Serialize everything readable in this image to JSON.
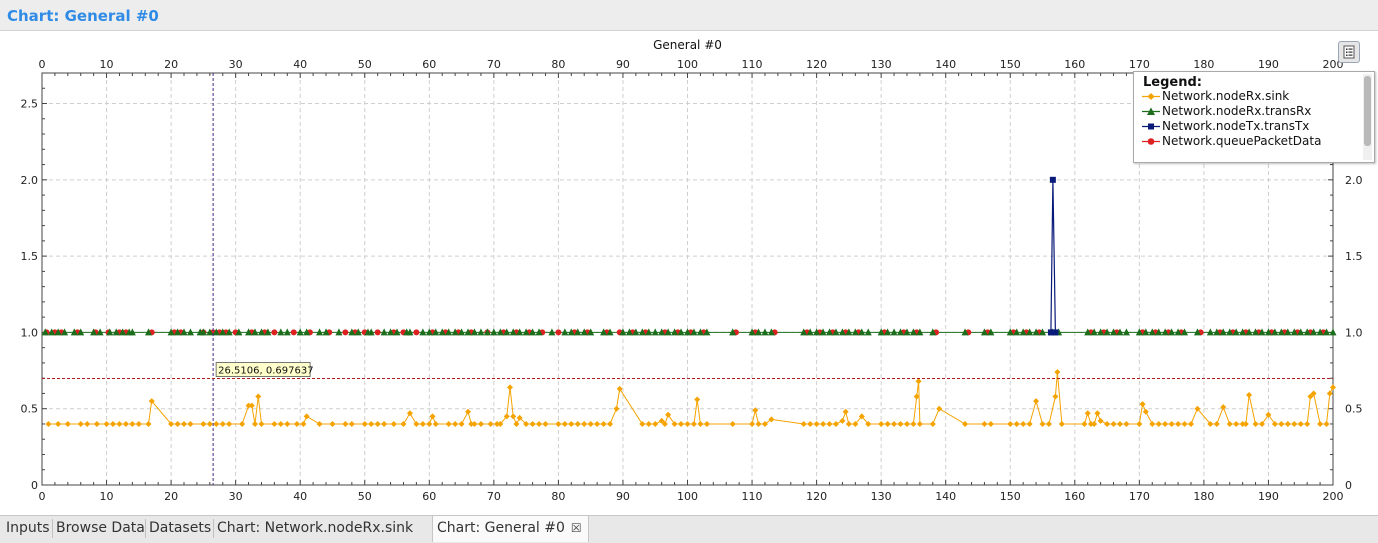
{
  "header": {
    "title": "Chart: General  #0"
  },
  "chart_data": {
    "type": "line",
    "title": "General  #0",
    "xlim": [
      0,
      200
    ],
    "ylim": [
      0,
      2.7
    ],
    "x_ticks": [
      0,
      10,
      20,
      30,
      40,
      50,
      60,
      70,
      80,
      90,
      100,
      110,
      120,
      130,
      140,
      150,
      160,
      170,
      180,
      190,
      200
    ],
    "x_tick_labels": [
      "0",
      "10",
      "20",
      "30",
      "40",
      "50",
      "60",
      "70",
      "80",
      "90",
      "100",
      "110",
      "120",
      "130",
      "140",
      "150",
      "160",
      "170",
      "180",
      "190",
      "200"
    ],
    "y_ticks": [
      0,
      0.5,
      1.0,
      1.5,
      2.0,
      2.5
    ],
    "y_tick_labels": [
      "0",
      "0.5",
      "1.0",
      "1.5",
      "2.0",
      "2.5"
    ],
    "y_ticks_right": [
      0,
      0.5,
      1.0,
      1.5,
      2.0
    ],
    "y_tick_labels_right": [
      "0",
      "0.5",
      "1.0",
      "1.5",
      "2.0"
    ],
    "grid": true,
    "legend_position": "top-right",
    "crosshair": {
      "x": 26.5106,
      "y": 0.697637,
      "label": "26.5106, 0.697637"
    },
    "series": [
      {
        "name": "Network.nodeRx.sink",
        "color": "#f5a300",
        "marker": "diamond",
        "points": [
          [
            1,
            0.4
          ],
          [
            2.5,
            0.4
          ],
          [
            4,
            0.4
          ],
          [
            6,
            0.4
          ],
          [
            7,
            0.4
          ],
          [
            8.5,
            0.4
          ],
          [
            10,
            0.4
          ],
          [
            11,
            0.4
          ],
          [
            12,
            0.4
          ],
          [
            13,
            0.4
          ],
          [
            14,
            0.4
          ],
          [
            15,
            0.4
          ],
          [
            16.5,
            0.4
          ],
          [
            17,
            0.55
          ],
          [
            20,
            0.4
          ],
          [
            21,
            0.4
          ],
          [
            22,
            0.4
          ],
          [
            23,
            0.4
          ],
          [
            25,
            0.4
          ],
          [
            26,
            0.4
          ],
          [
            27,
            0.4
          ],
          [
            28,
            0.4
          ],
          [
            29,
            0.4
          ],
          [
            31,
            0.4
          ],
          [
            32,
            0.52
          ],
          [
            32.5,
            0.52
          ],
          [
            33,
            0.4
          ],
          [
            33.5,
            0.58
          ],
          [
            34,
            0.4
          ],
          [
            36,
            0.4
          ],
          [
            37,
            0.4
          ],
          [
            38,
            0.4
          ],
          [
            39.5,
            0.4
          ],
          [
            40.5,
            0.4
          ],
          [
            41,
            0.45
          ],
          [
            43,
            0.4
          ],
          [
            45,
            0.4
          ],
          [
            47,
            0.4
          ],
          [
            48,
            0.4
          ],
          [
            50,
            0.4
          ],
          [
            51,
            0.4
          ],
          [
            52,
            0.4
          ],
          [
            53,
            0.4
          ],
          [
            54.5,
            0.4
          ],
          [
            56,
            0.4
          ],
          [
            57,
            0.47
          ],
          [
            58,
            0.4
          ],
          [
            59,
            0.4
          ],
          [
            60,
            0.4
          ],
          [
            60.5,
            0.45
          ],
          [
            61,
            0.4
          ],
          [
            63,
            0.4
          ],
          [
            64,
            0.4
          ],
          [
            65,
            0.4
          ],
          [
            66,
            0.48
          ],
          [
            66.5,
            0.4
          ],
          [
            67,
            0.4
          ],
          [
            68,
            0.4
          ],
          [
            69.5,
            0.4
          ],
          [
            70.5,
            0.4
          ],
          [
            71,
            0.4
          ],
          [
            72,
            0.45
          ],
          [
            72.5,
            0.64
          ],
          [
            73,
            0.45
          ],
          [
            73.5,
            0.4
          ],
          [
            74,
            0.44
          ],
          [
            75,
            0.4
          ],
          [
            76,
            0.4
          ],
          [
            77,
            0.4
          ],
          [
            78,
            0.4
          ],
          [
            80,
            0.4
          ],
          [
            81,
            0.4
          ],
          [
            82,
            0.4
          ],
          [
            83,
            0.4
          ],
          [
            84,
            0.4
          ],
          [
            85,
            0.4
          ],
          [
            86,
            0.4
          ],
          [
            87,
            0.4
          ],
          [
            88,
            0.4
          ],
          [
            89,
            0.5
          ],
          [
            89.5,
            0.63
          ],
          [
            93,
            0.4
          ],
          [
            94,
            0.4
          ],
          [
            95,
            0.4
          ],
          [
            96,
            0.42
          ],
          [
            96.5,
            0.4
          ],
          [
            97,
            0.46
          ],
          [
            98,
            0.4
          ],
          [
            99,
            0.4
          ],
          [
            100,
            0.4
          ],
          [
            101,
            0.4
          ],
          [
            101.5,
            0.56
          ],
          [
            102,
            0.4
          ],
          [
            103,
            0.4
          ],
          [
            107,
            0.4
          ],
          [
            110,
            0.4
          ],
          [
            110.5,
            0.49
          ],
          [
            111,
            0.4
          ],
          [
            112,
            0.4
          ],
          [
            113,
            0.43
          ],
          [
            118,
            0.4
          ],
          [
            119,
            0.4
          ],
          [
            120,
            0.4
          ],
          [
            121,
            0.4
          ],
          [
            122,
            0.4
          ],
          [
            123,
            0.4
          ],
          [
            124,
            0.42
          ],
          [
            124.5,
            0.48
          ],
          [
            125,
            0.4
          ],
          [
            126,
            0.4
          ],
          [
            127,
            0.45
          ],
          [
            128,
            0.4
          ],
          [
            130,
            0.4
          ],
          [
            131,
            0.4
          ],
          [
            132,
            0.4
          ],
          [
            133,
            0.4
          ],
          [
            134,
            0.4
          ],
          [
            135,
            0.4
          ],
          [
            135.5,
            0.58
          ],
          [
            135.8,
            0.68
          ],
          [
            136,
            0.4
          ],
          [
            138,
            0.4
          ],
          [
            139,
            0.5
          ],
          [
            143,
            0.4
          ],
          [
            146,
            0.4
          ],
          [
            147,
            0.4
          ],
          [
            150,
            0.4
          ],
          [
            151,
            0.4
          ],
          [
            152,
            0.4
          ],
          [
            153,
            0.4
          ],
          [
            154,
            0.55
          ],
          [
            155,
            0.4
          ],
          [
            156,
            0.4
          ],
          [
            157,
            0.58
          ],
          [
            157.3,
            0.74
          ],
          [
            158,
            0.4
          ],
          [
            161.5,
            0.4
          ],
          [
            162,
            0.47
          ],
          [
            162.5,
            0.4
          ],
          [
            163,
            0.4
          ],
          [
            163.5,
            0.47
          ],
          [
            164,
            0.42
          ],
          [
            165,
            0.4
          ],
          [
            166,
            0.4
          ],
          [
            167,
            0.4
          ],
          [
            168,
            0.4
          ],
          [
            170,
            0.4
          ],
          [
            170.5,
            0.53
          ],
          [
            171,
            0.48
          ],
          [
            172,
            0.4
          ],
          [
            173,
            0.4
          ],
          [
            174,
            0.4
          ],
          [
            175,
            0.4
          ],
          [
            176,
            0.4
          ],
          [
            177,
            0.4
          ],
          [
            178,
            0.4
          ],
          [
            179,
            0.5
          ],
          [
            181,
            0.4
          ],
          [
            182,
            0.4
          ],
          [
            183,
            0.51
          ],
          [
            184,
            0.4
          ],
          [
            185,
            0.4
          ],
          [
            186,
            0.4
          ],
          [
            186.5,
            0.4
          ],
          [
            187,
            0.59
          ],
          [
            188,
            0.4
          ],
          [
            189,
            0.4
          ],
          [
            190,
            0.46
          ],
          [
            191,
            0.4
          ],
          [
            192,
            0.4
          ],
          [
            193,
            0.4
          ],
          [
            194,
            0.4
          ],
          [
            195,
            0.4
          ],
          [
            196,
            0.4
          ],
          [
            196.5,
            0.58
          ],
          [
            197,
            0.6
          ],
          [
            198,
            0.4
          ],
          [
            199,
            0.4
          ],
          [
            199.5,
            0.6
          ],
          [
            200,
            0.64
          ]
        ]
      },
      {
        "name": "Network.nodeRx.transRx",
        "color": "#1c6e1c",
        "marker": "triangle",
        "y": 1.0,
        "x": [
          0.5,
          1.5,
          2.5,
          3.5,
          5,
          6,
          8,
          9,
          10.5,
          11.5,
          12.5,
          13.5,
          14,
          16.5,
          20,
          21,
          22,
          23,
          24.5,
          25,
          26,
          27,
          28,
          29,
          30.5,
          32,
          33,
          34,
          35,
          37,
          38,
          40,
          41,
          43,
          44,
          46,
          48,
          49,
          50.5,
          51,
          53,
          54,
          55,
          56.5,
          57,
          59,
          60,
          61,
          62,
          63,
          64,
          65,
          66,
          67,
          68,
          69,
          70,
          71,
          72,
          73,
          74,
          75,
          76,
          77,
          79,
          81,
          82,
          83,
          84,
          85,
          87,
          88,
          90,
          91,
          92,
          93,
          94,
          95,
          96,
          97,
          98,
          99,
          100,
          101,
          102,
          103,
          107,
          110,
          111,
          112,
          113,
          118,
          119,
          120,
          121,
          122,
          123,
          124,
          125,
          126,
          127,
          128,
          130,
          131,
          132,
          133,
          134,
          135,
          136,
          138,
          143,
          146,
          147,
          150,
          151,
          152,
          153,
          154,
          155,
          156.5,
          157.5,
          162,
          163,
          164,
          165,
          166,
          167,
          168,
          170,
          171,
          172,
          173,
          174,
          175,
          176,
          177,
          179,
          181,
          182,
          183,
          184,
          185,
          186,
          187,
          188,
          189,
          190,
          191,
          192,
          193,
          194,
          195,
          196,
          197,
          198,
          199,
          200
        ]
      },
      {
        "name": "Network.nodeTx.transTx",
        "color": "#0a1a7a",
        "marker": "square",
        "points": [
          [
            156.3,
            1.0
          ],
          [
            156.6,
            2.0
          ],
          [
            157.0,
            1.0
          ]
        ]
      },
      {
        "name": "Network.queuePacketData",
        "color": "#dd2020",
        "marker": "circle",
        "y": 1.0,
        "x": [
          0.7,
          2,
          3,
          5.5,
          8.3,
          10.3,
          12,
          13,
          17,
          20.5,
          21.5,
          25,
          26.5,
          27.5,
          28.5,
          30,
          32.5,
          34.5,
          36,
          39,
          41.5,
          44.5,
          47,
          48.5,
          50,
          52,
          54.5,
          56,
          58,
          60.5,
          62.5,
          64.5,
          66.5,
          69,
          71.5,
          73.5,
          75.5,
          77.5,
          80,
          82.5,
          84.5,
          87.5,
          89.5,
          91.5,
          93.5,
          96.5,
          98.5,
          100.5,
          102.5,
          107.5,
          110.5,
          113.5,
          118.5,
          120.5,
          122.5,
          124.5,
          126.5,
          130.5,
          133.5,
          135.5,
          138.5,
          143.5,
          146.5,
          150.5,
          152.5,
          154.5,
          162.5,
          164.5,
          166.5,
          170.5,
          172.5,
          174.5,
          176.5,
          179.5,
          182.5,
          184.5,
          186.5,
          188.5,
          190.5,
          192.5,
          194.5,
          196.5,
          198.5
        ]
      }
    ]
  },
  "legend": {
    "title": "Legend:",
    "items": [
      "Network.nodeRx.sink",
      "Network.nodeRx.transRx",
      "Network.nodeTx.transTx",
      "Network.queuePacketData"
    ]
  },
  "toolbar": {
    "legend_toggle_icon": "list-icon"
  },
  "tabs": [
    {
      "label": "Inputs"
    },
    {
      "label": "Browse Data"
    },
    {
      "label": "Datasets"
    },
    {
      "label": "Chart: Network.nodeRx.sink"
    },
    {
      "label": "Chart: General  #0",
      "active": true
    }
  ]
}
